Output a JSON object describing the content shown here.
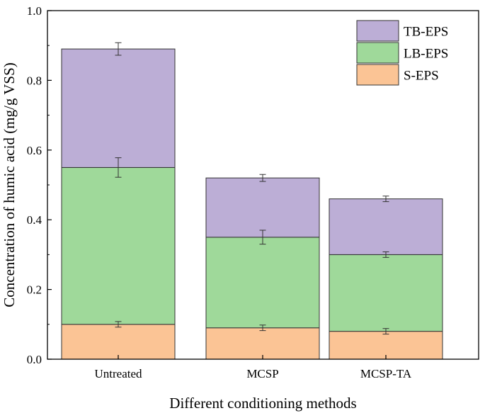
{
  "chart_data": {
    "type": "bar",
    "stacked": true,
    "categories": [
      "Untreated",
      "MCSP",
      "MCSP-TA"
    ],
    "series": [
      {
        "name": "S-EPS",
        "color": "#fbc495",
        "values": [
          0.1,
          0.09,
          0.08
        ],
        "errors": [
          0.008,
          0.008,
          0.008
        ]
      },
      {
        "name": "LB-EPS",
        "color": "#9fd99a",
        "values": [
          0.45,
          0.26,
          0.22
        ],
        "errors": [
          0.028,
          0.02,
          0.008
        ]
      },
      {
        "name": "TB-EPS",
        "color": "#bcaed6",
        "values": [
          0.34,
          0.17,
          0.16
        ],
        "errors": [
          0.018,
          0.01,
          0.008
        ]
      }
    ],
    "xlabel": "Different conditioning methods",
    "ylabel": "Concentration of humic acid (mg/g VSS)",
    "ylim": [
      0.0,
      1.0
    ],
    "yticks": [
      0.0,
      0.2,
      0.4,
      0.6,
      0.8,
      1.0
    ],
    "ytick_labels": [
      "0.0",
      "0.2",
      "0.4",
      "0.6",
      "0.8",
      "1.0"
    ],
    "legend_order": [
      "TB-EPS",
      "LB-EPS",
      "S-EPS"
    ],
    "legend_position": "top-right"
  }
}
